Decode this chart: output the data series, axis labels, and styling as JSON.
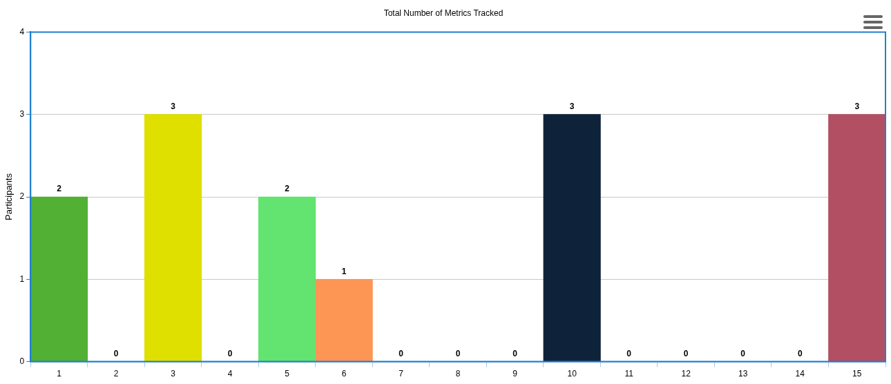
{
  "chart_data": {
    "type": "bar",
    "title": "Total Number of Metrics Tracked",
    "ylabel": "Participants",
    "categories": [
      "1",
      "2",
      "3",
      "4",
      "5",
      "6",
      "7",
      "8",
      "9",
      "10",
      "11",
      "12",
      "13",
      "14",
      "15"
    ],
    "values": [
      2,
      0,
      3,
      0,
      2,
      1,
      0,
      0,
      0,
      3,
      0,
      0,
      0,
      0,
      3
    ],
    "colors": [
      "#52b035",
      "#7cb5ec",
      "#dfdf00",
      "#7cb5ec",
      "#63e36f",
      "#fd9555",
      "#7cb5ec",
      "#7cb5ec",
      "#7cb5ec",
      "#0e233a",
      "#7cb5ec",
      "#7cb5ec",
      "#7cb5ec",
      "#7cb5ec",
      "#b24f63"
    ],
    "ylim": [
      0,
      4
    ],
    "yticks": [
      0,
      1,
      2,
      3,
      4
    ],
    "grid": "y",
    "legend": false,
    "data_labels": true
  }
}
